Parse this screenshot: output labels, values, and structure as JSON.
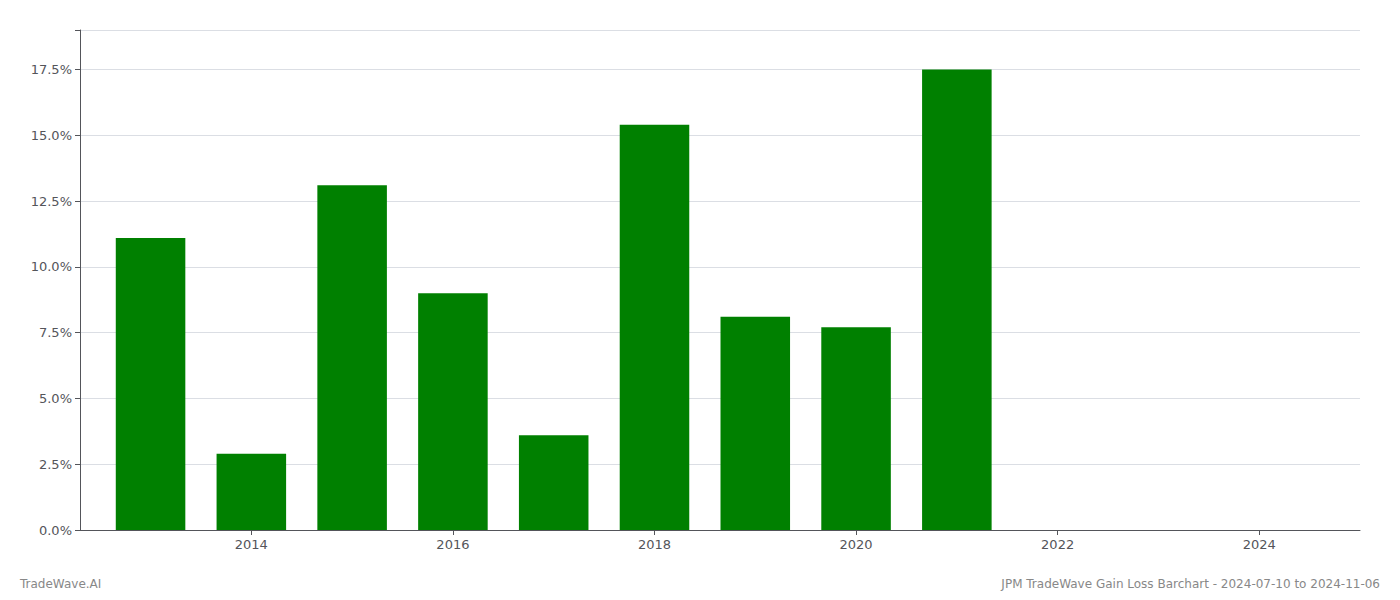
{
  "chart_data": {
    "type": "bar",
    "x": [
      2013,
      2014,
      2015,
      2016,
      2017,
      2018,
      2019,
      2020,
      2021,
      2022
    ],
    "values": [
      0.111,
      0.029,
      0.131,
      0.09,
      0.036,
      0.154,
      0.081,
      0.077,
      0.175,
      0.0
    ],
    "color": "#008000",
    "xlim": [
      2012.3,
      2025.0
    ],
    "xticks": [
      2014,
      2016,
      2018,
      2020,
      2022,
      2024
    ],
    "ylim": [
      0.0,
      0.19
    ],
    "yticks": [
      {
        "value": 0.0,
        "label": "0.0%"
      },
      {
        "value": 0.025,
        "label": "2.5%"
      },
      {
        "value": 0.05,
        "label": "5.0%"
      },
      {
        "value": 0.075,
        "label": "7.5%"
      },
      {
        "value": 0.1,
        "label": "10.0%"
      },
      {
        "value": 0.125,
        "label": "12.5%"
      },
      {
        "value": 0.15,
        "label": "15.0%"
      },
      {
        "value": 0.175,
        "label": "17.5%"
      }
    ],
    "grid": true,
    "annotations": [
      "TradeWave.AI",
      "JPM TradeWave Gain Loss Barchart - 2024-07-10 to 2024-11-06"
    ]
  }
}
